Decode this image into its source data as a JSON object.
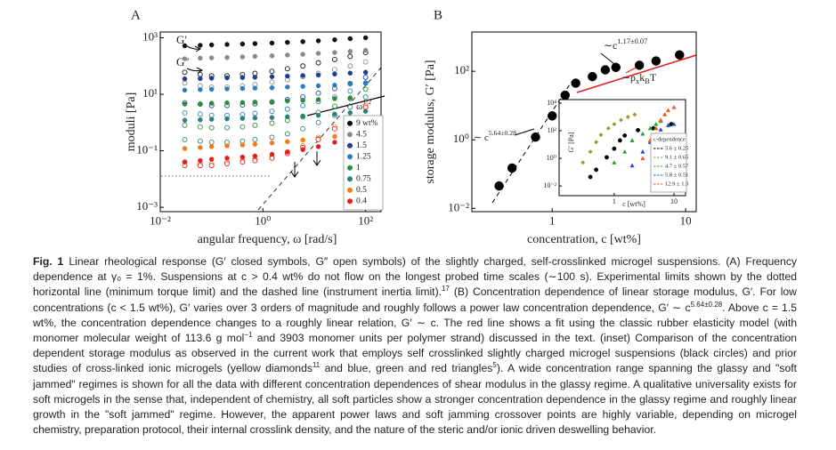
{
  "chart_data": [
    {
      "type": "scatter",
      "panel_label": "A",
      "log_x": true,
      "log_y": true,
      "xlabel": "angular frequency, ω [rad/s]",
      "ylabel": "moduli [Pa]",
      "xlim": [
        0.01,
        200
      ],
      "ylim": [
        0.0007,
        1600
      ],
      "xticks": [
        {
          "value": 0.01,
          "label": "10⁻²"
        },
        {
          "value": 1,
          "label": "10⁰"
        },
        {
          "value": 100,
          "label": "10²"
        }
      ],
      "yticks": [
        {
          "value": 1000,
          "label": "10³"
        },
        {
          "value": 10,
          "label": "10¹"
        },
        {
          "value": 0.1,
          "label": "10⁻¹"
        },
        {
          "value": 0.001,
          "label": "10⁻³"
        }
      ],
      "annotations": [
        [
          "G′"
        ],
        [
          "G″"
        ],
        [
          "ω",
          {
            "sup": "1/2"
          }
        ]
      ],
      "legend": "lower right",
      "x": [
        0.03,
        0.06,
        0.1,
        0.2,
        0.4,
        0.7,
        1.5,
        3,
        6,
        12,
        25,
        50,
        100
      ],
      "series": [
        {
          "name": "9 wt%",
          "color": "#111111",
          "values": [
            520,
            540,
            560,
            580,
            600,
            620,
            650,
            690,
            730,
            780,
            850,
            930,
            1000
          ],
          "open_values": [
            60,
            50,
            45,
            45,
            50,
            55,
            65,
            80,
            100,
            130,
            170,
            220,
            300
          ]
        },
        {
          "name": "4.5",
          "color": "#8a8a8a",
          "values": [
            180,
            190,
            195,
            200,
            210,
            220,
            230,
            245,
            260,
            280,
            300,
            330,
            360
          ],
          "open_values": [
            25,
            20,
            18,
            18,
            20,
            22,
            27,
            33,
            42,
            55,
            75,
            100,
            140
          ]
        },
        {
          "name": "1.5",
          "color": "#1f3f8f",
          "values": [
            35,
            36,
            37,
            38,
            39,
            40,
            42,
            44,
            46,
            48,
            52,
            56,
            60
          ],
          "open_values": [
            5,
            4.5,
            4,
            4,
            4.2,
            4.6,
            5.3,
            6.5,
            8,
            11,
            16,
            24,
            40
          ]
        },
        {
          "name": "1.25",
          "color": "#2b7fc0",
          "values": [
            14,
            14.5,
            15,
            15.5,
            16,
            16.5,
            17,
            18,
            19,
            20,
            21,
            23,
            25
          ],
          "open_values": [
            2.2,
            2,
            1.8,
            1.8,
            1.9,
            2.1,
            2.5,
            3,
            4,
            5.5,
            8,
            13,
            25
          ]
        },
        {
          "name": "1",
          "color": "#2e8b3e",
          "values": [
            4.5,
            4.6,
            4.8,
            5,
            5.1,
            5.3,
            5.5,
            5.8,
            6.1,
            6.5,
            7,
            7.5,
            8
          ],
          "open_values": [
            0.8,
            0.7,
            0.65,
            0.65,
            0.7,
            0.8,
            0.95,
            1.2,
            1.6,
            2.3,
            3.8,
            7,
            15
          ]
        },
        {
          "name": "0.75",
          "color": "#2f7f7a",
          "values": [
            1.2,
            1.25,
            1.3,
            1.35,
            1.4,
            1.45,
            1.5,
            1.6,
            1.7,
            1.8,
            2,
            2.2,
            2.5
          ],
          "open_values": [
            0.25,
            0.22,
            0.2,
            0.2,
            0.22,
            0.25,
            0.3,
            0.4,
            0.6,
            1,
            1.8,
            3.5,
            8
          ]
        },
        {
          "name": "0.5",
          "color": "#f07d1a",
          "values": [
            0.12,
            0.13,
            0.14,
            0.15,
            0.16,
            0.17,
            0.19,
            0.21,
            0.24,
            0.27,
            0.32,
            0.4,
            0.5
          ],
          "open_values": [
            0.04,
            0.035,
            0.035,
            0.04,
            0.045,
            0.05,
            0.06,
            0.09,
            0.15,
            0.3,
            0.7,
            1.5,
            4
          ]
        },
        {
          "name": "0.4",
          "color": "#e02020",
          "values": [
            0.04,
            0.045,
            0.05,
            0.055,
            0.06,
            0.065,
            0.075,
            0.09,
            0.11,
            0.14,
            0.2,
            0.3,
            0.5
          ],
          "open_values": [
            0.03,
            0.03,
            0.03,
            0.035,
            0.04,
            0.045,
            0.055,
            0.08,
            0.13,
            0.25,
            0.6,
            1.4,
            3.5
          ]
        }
      ]
    },
    {
      "type": "scatter",
      "panel_label": "B",
      "log_x": true,
      "log_y": true,
      "xlabel": "concentration, c [wt%]",
      "ylabel": "storage modulus, G′ [Pa]",
      "xlim": [
        0.25,
        12
      ],
      "ylim": [
        0.008,
        1400
      ],
      "xticks": [
        1,
        10
      ],
      "yticks": [
        {
          "value": 100,
          "label": "10²"
        },
        {
          "value": 1,
          "label": "10⁰"
        },
        {
          "value": 0.01,
          "label": "10⁻²"
        }
      ],
      "annotations": [
        [
          "∼c",
          {
            "sup": "1.17±0.07"
          }
        ],
        [
          "∼ρ",
          {
            "sub": "x"
          },
          "k",
          {
            "sub": "B"
          },
          "T"
        ],
        [
          "∼ c",
          {
            "sup": "5.64±0.28"
          }
        ]
      ],
      "series": [
        {
          "color": "#000000",
          "marker": "circle",
          "x": [
            0.4,
            0.5,
            0.75,
            1,
            1.25,
            1.5,
            2,
            2.5,
            3,
            4.5,
            6,
            9
          ],
          "values": [
            0.045,
            0.15,
            1.2,
            5,
            20,
            45,
            70,
            110,
            130,
            150,
            200,
            300
          ]
        }
      ]
    },
    {
      "type": "scatter",
      "log_x": true,
      "log_y": true,
      "xlabel": "c [wt%]",
      "ylabel": "G′ [Pa]",
      "xlim": [
        0.12,
        15.6
      ],
      "ylim": [
        0.002,
        18000
      ],
      "xticks": [
        1,
        10
      ],
      "yticks": [
        {
          "value": 10000,
          "label": "10⁴"
        },
        {
          "value": 100,
          "label": "10²"
        },
        {
          "value": 1,
          "label": "10⁰"
        },
        {
          "value": 0.01,
          "label": "10⁻²"
        }
      ],
      "legend_title": "c-dependence",
      "series": [
        {
          "name": "5.6 ± 0.25",
          "color": "#000000",
          "marker": "circle",
          "x": [
            0.4,
            0.5,
            0.75,
            1,
            1.25,
            1.5,
            2.5,
            4.5,
            9
          ],
          "values": [
            0.045,
            0.15,
            1.2,
            5,
            20,
            45,
            110,
            150,
            300
          ]
        },
        {
          "name": "9.1 ± 0.65",
          "color": "#9a9a2a",
          "marker": "diamond",
          "x": [
            0.3,
            0.4,
            0.5,
            0.6,
            0.8,
            1,
            1.3,
            1.7,
            2.2
          ],
          "values": [
            0.5,
            3,
            15,
            50,
            150,
            300,
            600,
            1000,
            1500
          ]
        },
        {
          "name": "4.7 ± 0.57",
          "color": "#2ea02e",
          "marker": "triangle",
          "x": [
            1,
            1.5,
            2,
            3,
            4,
            5,
            6
          ],
          "values": [
            0.5,
            3,
            20,
            60,
            150,
            300,
            500
          ]
        },
        {
          "name": "5.8 ± 0.51",
          "color": "#2050d0",
          "marker": "triangle",
          "x": [
            2,
            3,
            4,
            5,
            6,
            8,
            10
          ],
          "values": [
            0.3,
            3,
            15,
            50,
            120,
            250,
            300
          ]
        },
        {
          "name": "12.9 ± 1.3",
          "color": "#e85a20",
          "marker": "triangle",
          "x": [
            3,
            4,
            5,
            6,
            7,
            8,
            10
          ],
          "values": [
            1,
            20,
            150,
            600,
            1500,
            3000,
            5000
          ]
        }
      ]
    }
  ],
  "caption": {
    "label": "Fig. 1",
    "parts": [
      "Linear rheological response (G′ closed symbols, G″ open symbols) of the slightly charged, self-crosslinked microgel suspensions. (A) Frequency dependence at γ₀ = 1%. Suspensions at c > 0.4 wt% do not flow on the longest probed time scales (∼100 s). Experimental limits shown by the dotted horizontal line (minimum torque limit) and the dashed line (instrument inertia limit).",
      {
        "sup": "17"
      },
      " (B) Concentration dependence of linear storage modulus, G′. For low concentrations (c < 1.5 wt%), G′ varies over 3 orders of magnitude and roughly follows a power law concentration dependence, G′ ∼ c",
      {
        "sup": "5.64±0.28"
      },
      ". Above c = 1.5 wt%, the concentration dependence changes to a roughly linear relation, G′ ∼ c. The red line shows a fit using the classic rubber elasticity model (with monomer molecular weight of 113.6 g mol",
      {
        "sup": "−1"
      },
      " and 3903 monomer units per polymer strand) discussed in the text. (inset) Comparison of the concentration dependent storage modulus as observed in the current work that employs self crosslinked slightly charged microgel suspensions (black circles) and prior studies of cross-linked ionic microgels (yellow diamonds",
      {
        "sup": "11"
      },
      " and blue, green and red triangles",
      {
        "sup": "5"
      },
      "). A wide concentration range spanning the glassy and \"soft jammed\" regimes is shown for all the data with different concentration dependences of shear modulus in the glassy regime. A qualitative universality exists for soft microgels in the sense that, independent of chemistry, all soft particles show a stronger concentration dependence in the glassy regime and roughly linear growth in the \"soft jammed\" regime. However, the apparent power laws and soft jamming crossover points are highly variable, depending on microgel chemistry, preparation protocol, their internal crosslink density, and the nature of the steric and/or ionic driven deswelling behavior."
    ]
  }
}
